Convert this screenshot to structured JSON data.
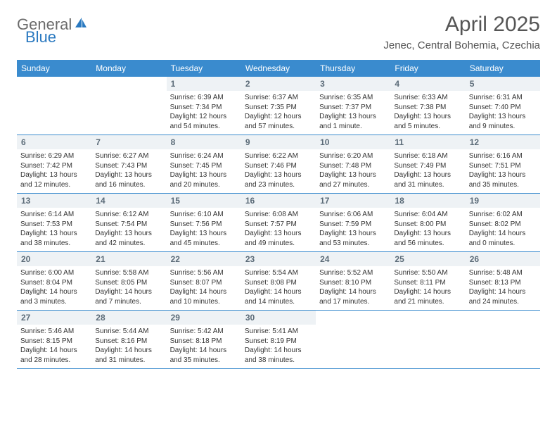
{
  "logo": {
    "text1": "General",
    "text2": "Blue",
    "icon_color": "#2a79c0"
  },
  "header": {
    "month_title": "April 2025",
    "location": "Jenec, Central Bohemia, Czechia"
  },
  "colors": {
    "header_bg": "#3a8bce",
    "day_num_bg": "#eef2f5",
    "week_border": "#3a8bce",
    "logo_gray": "#6b6b6b",
    "logo_blue": "#2a79c0",
    "text": "#333333"
  },
  "weekdays": [
    "Sunday",
    "Monday",
    "Tuesday",
    "Wednesday",
    "Thursday",
    "Friday",
    "Saturday"
  ],
  "weeks": [
    [
      null,
      null,
      {
        "num": "1",
        "sunrise": "Sunrise: 6:39 AM",
        "sunset": "Sunset: 7:34 PM",
        "daylight": "Daylight: 12 hours and 54 minutes."
      },
      {
        "num": "2",
        "sunrise": "Sunrise: 6:37 AM",
        "sunset": "Sunset: 7:35 PM",
        "daylight": "Daylight: 12 hours and 57 minutes."
      },
      {
        "num": "3",
        "sunrise": "Sunrise: 6:35 AM",
        "sunset": "Sunset: 7:37 PM",
        "daylight": "Daylight: 13 hours and 1 minute."
      },
      {
        "num": "4",
        "sunrise": "Sunrise: 6:33 AM",
        "sunset": "Sunset: 7:38 PM",
        "daylight": "Daylight: 13 hours and 5 minutes."
      },
      {
        "num": "5",
        "sunrise": "Sunrise: 6:31 AM",
        "sunset": "Sunset: 7:40 PM",
        "daylight": "Daylight: 13 hours and 9 minutes."
      }
    ],
    [
      {
        "num": "6",
        "sunrise": "Sunrise: 6:29 AM",
        "sunset": "Sunset: 7:42 PM",
        "daylight": "Daylight: 13 hours and 12 minutes."
      },
      {
        "num": "7",
        "sunrise": "Sunrise: 6:27 AM",
        "sunset": "Sunset: 7:43 PM",
        "daylight": "Daylight: 13 hours and 16 minutes."
      },
      {
        "num": "8",
        "sunrise": "Sunrise: 6:24 AM",
        "sunset": "Sunset: 7:45 PM",
        "daylight": "Daylight: 13 hours and 20 minutes."
      },
      {
        "num": "9",
        "sunrise": "Sunrise: 6:22 AM",
        "sunset": "Sunset: 7:46 PM",
        "daylight": "Daylight: 13 hours and 23 minutes."
      },
      {
        "num": "10",
        "sunrise": "Sunrise: 6:20 AM",
        "sunset": "Sunset: 7:48 PM",
        "daylight": "Daylight: 13 hours and 27 minutes."
      },
      {
        "num": "11",
        "sunrise": "Sunrise: 6:18 AM",
        "sunset": "Sunset: 7:49 PM",
        "daylight": "Daylight: 13 hours and 31 minutes."
      },
      {
        "num": "12",
        "sunrise": "Sunrise: 6:16 AM",
        "sunset": "Sunset: 7:51 PM",
        "daylight": "Daylight: 13 hours and 35 minutes."
      }
    ],
    [
      {
        "num": "13",
        "sunrise": "Sunrise: 6:14 AM",
        "sunset": "Sunset: 7:53 PM",
        "daylight": "Daylight: 13 hours and 38 minutes."
      },
      {
        "num": "14",
        "sunrise": "Sunrise: 6:12 AM",
        "sunset": "Sunset: 7:54 PM",
        "daylight": "Daylight: 13 hours and 42 minutes."
      },
      {
        "num": "15",
        "sunrise": "Sunrise: 6:10 AM",
        "sunset": "Sunset: 7:56 PM",
        "daylight": "Daylight: 13 hours and 45 minutes."
      },
      {
        "num": "16",
        "sunrise": "Sunrise: 6:08 AM",
        "sunset": "Sunset: 7:57 PM",
        "daylight": "Daylight: 13 hours and 49 minutes."
      },
      {
        "num": "17",
        "sunrise": "Sunrise: 6:06 AM",
        "sunset": "Sunset: 7:59 PM",
        "daylight": "Daylight: 13 hours and 53 minutes."
      },
      {
        "num": "18",
        "sunrise": "Sunrise: 6:04 AM",
        "sunset": "Sunset: 8:00 PM",
        "daylight": "Daylight: 13 hours and 56 minutes."
      },
      {
        "num": "19",
        "sunrise": "Sunrise: 6:02 AM",
        "sunset": "Sunset: 8:02 PM",
        "daylight": "Daylight: 14 hours and 0 minutes."
      }
    ],
    [
      {
        "num": "20",
        "sunrise": "Sunrise: 6:00 AM",
        "sunset": "Sunset: 8:04 PM",
        "daylight": "Daylight: 14 hours and 3 minutes."
      },
      {
        "num": "21",
        "sunrise": "Sunrise: 5:58 AM",
        "sunset": "Sunset: 8:05 PM",
        "daylight": "Daylight: 14 hours and 7 minutes."
      },
      {
        "num": "22",
        "sunrise": "Sunrise: 5:56 AM",
        "sunset": "Sunset: 8:07 PM",
        "daylight": "Daylight: 14 hours and 10 minutes."
      },
      {
        "num": "23",
        "sunrise": "Sunrise: 5:54 AM",
        "sunset": "Sunset: 8:08 PM",
        "daylight": "Daylight: 14 hours and 14 minutes."
      },
      {
        "num": "24",
        "sunrise": "Sunrise: 5:52 AM",
        "sunset": "Sunset: 8:10 PM",
        "daylight": "Daylight: 14 hours and 17 minutes."
      },
      {
        "num": "25",
        "sunrise": "Sunrise: 5:50 AM",
        "sunset": "Sunset: 8:11 PM",
        "daylight": "Daylight: 14 hours and 21 minutes."
      },
      {
        "num": "26",
        "sunrise": "Sunrise: 5:48 AM",
        "sunset": "Sunset: 8:13 PM",
        "daylight": "Daylight: 14 hours and 24 minutes."
      }
    ],
    [
      {
        "num": "27",
        "sunrise": "Sunrise: 5:46 AM",
        "sunset": "Sunset: 8:15 PM",
        "daylight": "Daylight: 14 hours and 28 minutes."
      },
      {
        "num": "28",
        "sunrise": "Sunrise: 5:44 AM",
        "sunset": "Sunset: 8:16 PM",
        "daylight": "Daylight: 14 hours and 31 minutes."
      },
      {
        "num": "29",
        "sunrise": "Sunrise: 5:42 AM",
        "sunset": "Sunset: 8:18 PM",
        "daylight": "Daylight: 14 hours and 35 minutes."
      },
      {
        "num": "30",
        "sunrise": "Sunrise: 5:41 AM",
        "sunset": "Sunset: 8:19 PM",
        "daylight": "Daylight: 14 hours and 38 minutes."
      },
      null,
      null,
      null
    ]
  ]
}
